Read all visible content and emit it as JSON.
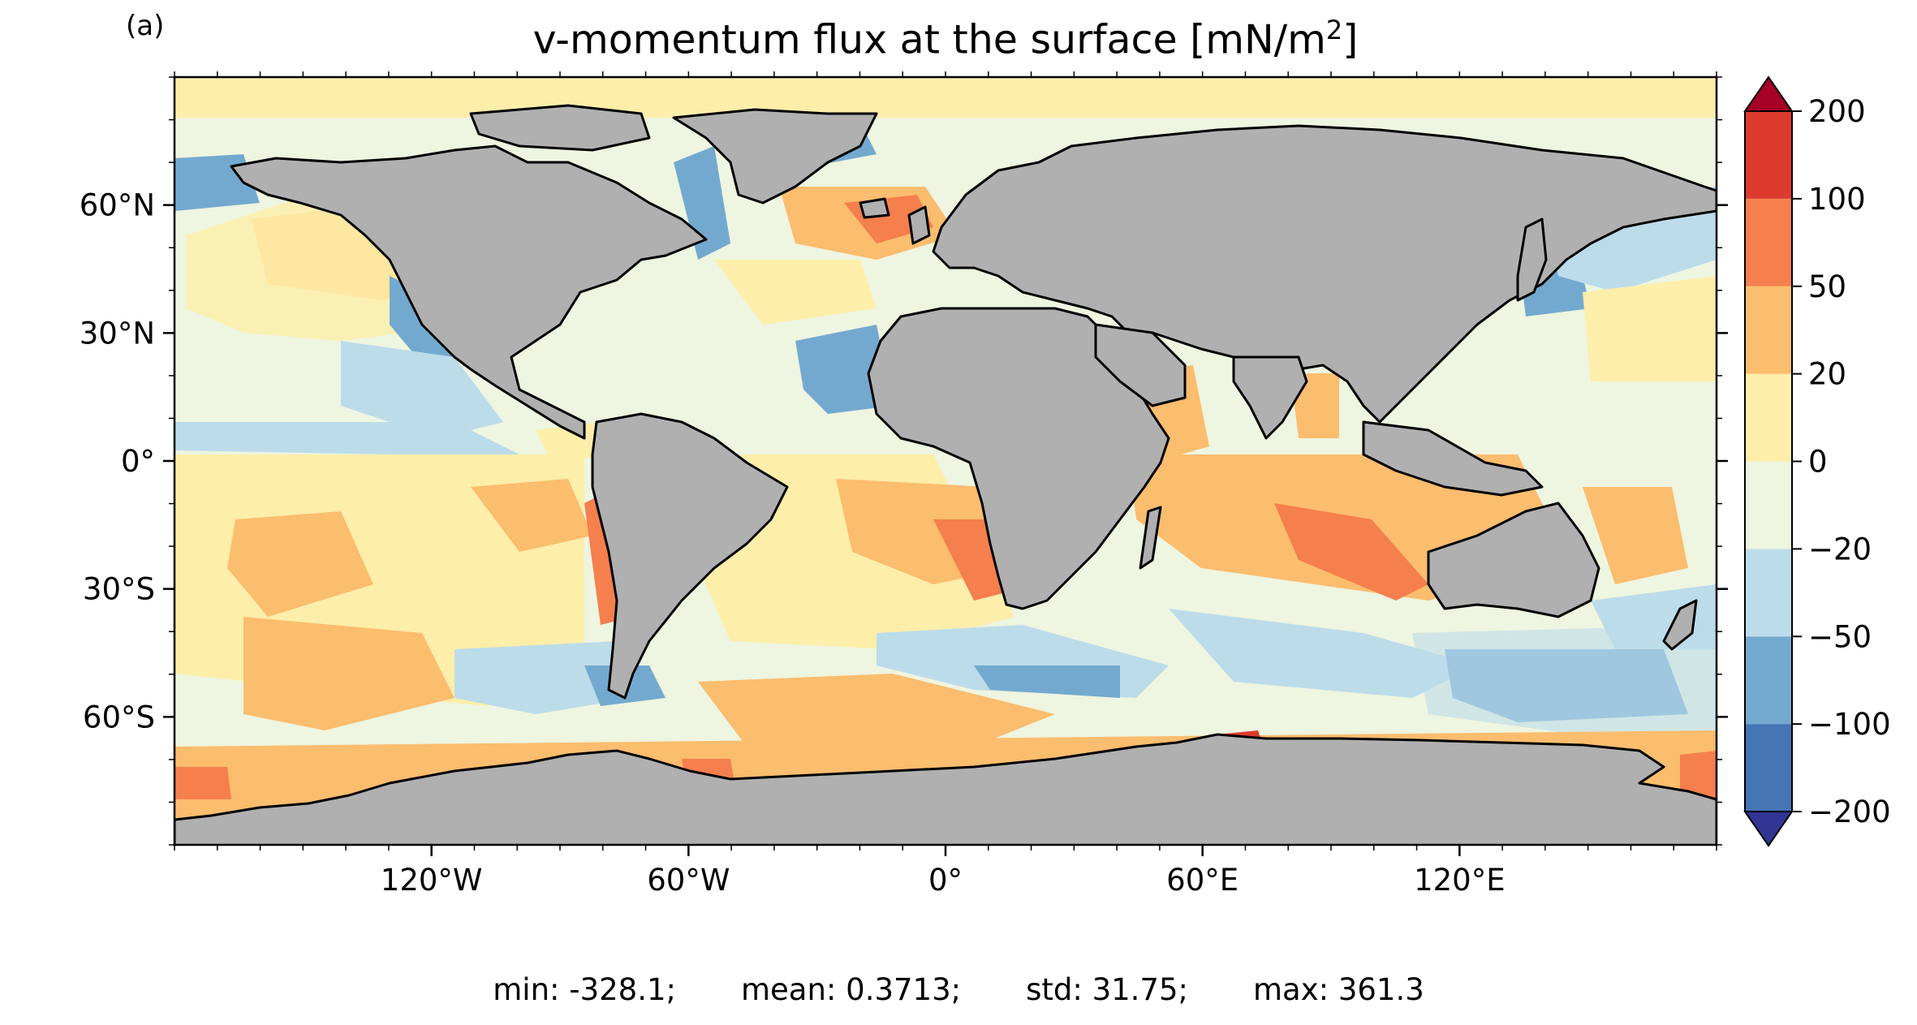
{
  "panel_label": "(a)",
  "title": {
    "main": "v-momentum flux at the surface [mN/m",
    "sup": "2",
    "close": "]"
  },
  "map": {
    "projection": "PlateCarree",
    "lon_range": [
      -180,
      180
    ],
    "lat_range": [
      -90,
      90
    ],
    "land_color": "#b0b0b0",
    "coastline_color": "#000000"
  },
  "axes": {
    "x_ticks": [
      {
        "lon": -120,
        "label": "120°W"
      },
      {
        "lon": -60,
        "label": "60°W"
      },
      {
        "lon": 0,
        "label": "0°"
      },
      {
        "lon": 60,
        "label": "60°E"
      },
      {
        "lon": 120,
        "label": "120°E"
      }
    ],
    "y_ticks": [
      {
        "lat": 60,
        "label": "60°N"
      },
      {
        "lat": 30,
        "label": "30°N"
      },
      {
        "lat": 0,
        "label": "0°"
      },
      {
        "lat": -30,
        "label": "30°S"
      },
      {
        "lat": -60,
        "label": "60°S"
      }
    ]
  },
  "colorbar": {
    "levels": [
      -200,
      -100,
      -50,
      -20,
      0,
      20,
      50,
      100,
      200
    ],
    "tick_labels": [
      "−200",
      "−100",
      "−50",
      "−20",
      "0",
      "20",
      "50",
      "100",
      "200"
    ],
    "colors": [
      "#4575b4",
      "#74a9cf",
      "#bcdcea",
      "#eef5e0",
      "#fdeeaa",
      "#fbbd6e",
      "#f57f4d",
      "#dc3b2d"
    ],
    "extend_min_color": "#313695",
    "extend_max_color": "#a50026"
  },
  "stats": {
    "min": "min: -328.1;",
    "mean": "mean: 0.3713;",
    "std": "std: 31.75;",
    "max": "max: 361.3"
  }
}
